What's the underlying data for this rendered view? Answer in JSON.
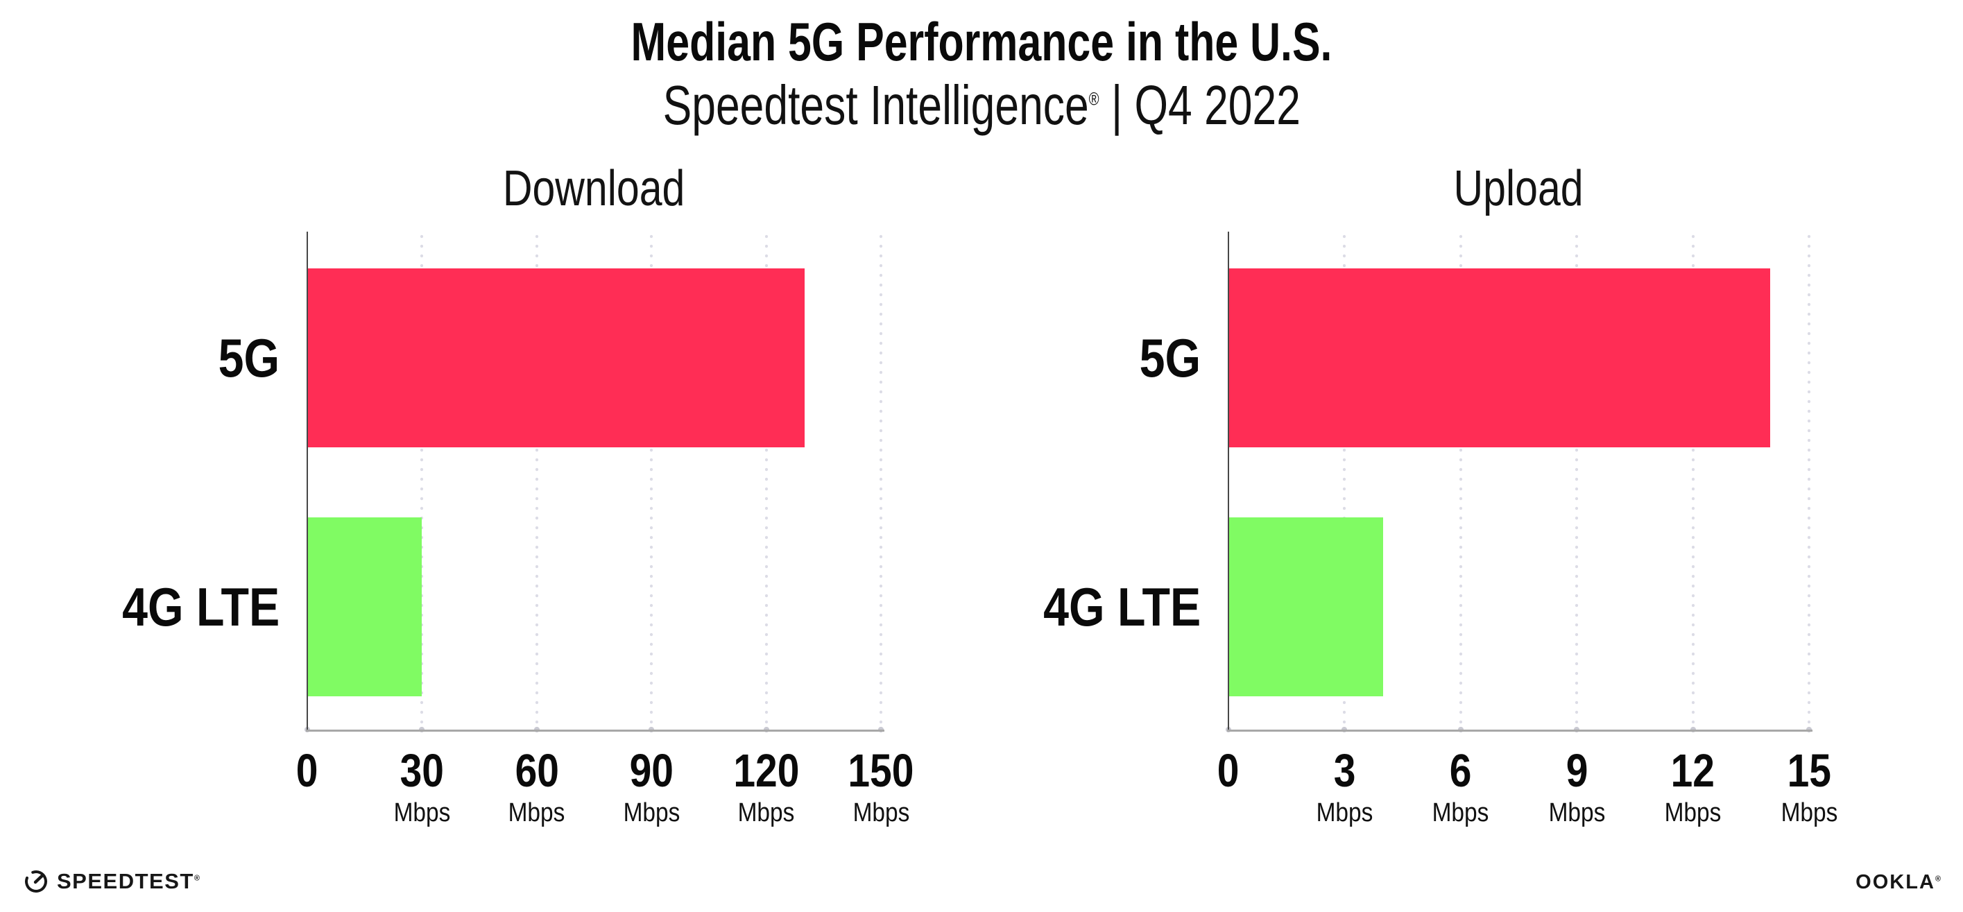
{
  "header": {
    "title": "Median 5G Performance in the U.S.",
    "subtitle_brand": "Speedtest Intelligence",
    "subtitle_reg": "®",
    "subtitle_rest": " | Q4 2022"
  },
  "colors": {
    "bar_5g": "#ff2d55",
    "bar_4g_lte": "#80fb63",
    "y_axis": "#474747",
    "x_axis": "#a8a8a8",
    "gridline_dots": "#dcdce6",
    "text": "#0a0a0a"
  },
  "chart_data": {
    "type": "bar",
    "orientation": "horizontal",
    "title": "Median 5G Performance in the U.S.",
    "subtitle": "Speedtest Intelligence® | Q4 2022",
    "unit": "Mbps",
    "categories": [
      "5G",
      "4G LTE"
    ],
    "grid": "dotted-vertical",
    "legend": "none",
    "charts": [
      {
        "title": "Download",
        "series": [
          {
            "name": "5G",
            "value": 130,
            "color": "#ff2d55"
          },
          {
            "name": "4G LTE",
            "value": 30,
            "color": "#80fb63"
          }
        ],
        "xlim": [
          0,
          150
        ],
        "tick_step": 30,
        "ticks": [
          {
            "num": "0",
            "unit": ""
          },
          {
            "num": "30",
            "unit": "Mbps"
          },
          {
            "num": "60",
            "unit": "Mbps"
          },
          {
            "num": "90",
            "unit": "Mbps"
          },
          {
            "num": "120",
            "unit": "Mbps"
          },
          {
            "num": "150",
            "unit": "Mbps"
          }
        ]
      },
      {
        "title": "Upload",
        "series": [
          {
            "name": "5G",
            "value": 14,
            "color": "#ff2d55"
          },
          {
            "name": "4G LTE",
            "value": 4,
            "color": "#80fb63"
          }
        ],
        "xlim": [
          0,
          15
        ],
        "tick_step": 3,
        "ticks": [
          {
            "num": "0",
            "unit": ""
          },
          {
            "num": "3",
            "unit": "Mbps"
          },
          {
            "num": "6",
            "unit": "Mbps"
          },
          {
            "num": "9",
            "unit": "Mbps"
          },
          {
            "num": "12",
            "unit": "Mbps"
          },
          {
            "num": "15",
            "unit": "Mbps"
          }
        ]
      }
    ]
  },
  "footer": {
    "speedtest_label": "SPEEDTEST",
    "speedtest_reg": "®",
    "ookla_label": "OOKLA",
    "ookla_reg": "®"
  }
}
